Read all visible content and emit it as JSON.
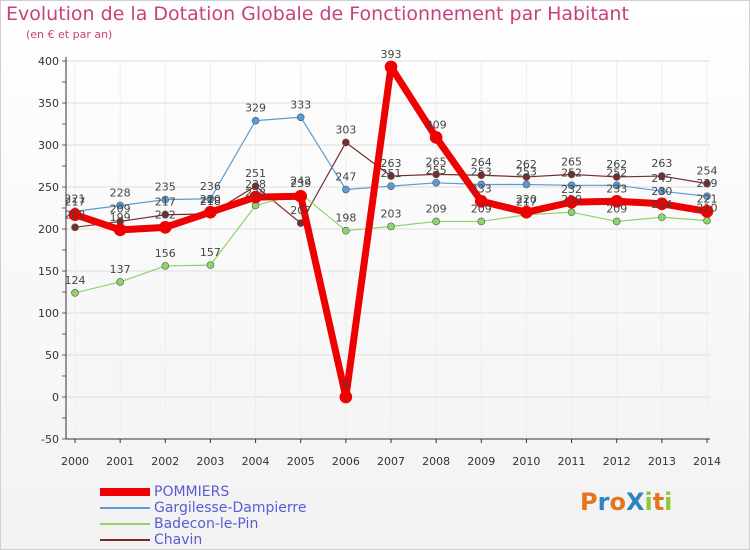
{
  "header": {
    "title": "Evolution de la Dotation Globale de Fonctionnement par Habitant",
    "subtitle": "(en € et par an)"
  },
  "brand": {
    "text": "ProXiti",
    "letters": [
      {
        "ch": "P",
        "color": "#e8731d"
      },
      {
        "ch": "r",
        "color": "#2e86c1"
      },
      {
        "ch": "o",
        "color": "#e8731d"
      },
      {
        "ch": "X",
        "color": "#2e86c1"
      },
      {
        "ch": "i",
        "color": "#8dc63f"
      },
      {
        "ch": "t",
        "color": "#e8731d"
      },
      {
        "ch": "i",
        "color": "#8dc63f"
      }
    ]
  },
  "chart_data": {
    "type": "line",
    "title": "Evolution de la Dotation Globale de Fonctionnement par Habitant",
    "subtitle": "(en € et par an)",
    "xlabel": "",
    "ylabel": "",
    "x": [
      "2000",
      "2001",
      "2002",
      "2003",
      "2004",
      "2005",
      "2006",
      "2007",
      "2008",
      "2009",
      "2010",
      "2011",
      "2012",
      "2013",
      "2014"
    ],
    "ylim": [
      -50,
      400
    ],
    "yticks": [
      -50,
      0,
      50,
      100,
      150,
      200,
      250,
      300,
      350,
      400
    ],
    "grid": true,
    "legend": "bottom-left",
    "series": [
      {
        "name": "Chavin",
        "color": "#7a2c2c",
        "width": 1.2,
        "values": [
          202,
          209,
          217,
          218,
          251,
          207,
          303,
          263,
          265,
          264,
          262,
          265,
          262,
          263,
          254
        ],
        "labels": [
          "202",
          "209",
          "217",
          "218",
          "251",
          "207",
          "303",
          "263",
          "265",
          "264",
          "262",
          "265",
          "262",
          "263",
          "254"
        ]
      },
      {
        "name": "Badecon-le-Pin",
        "color": "#8ed468",
        "width": 1.2,
        "values": [
          124,
          137,
          156,
          157,
          228,
          242,
          198,
          203,
          209,
          209,
          217,
          220,
          209,
          214,
          210
        ],
        "labels": [
          "124",
          "137",
          "156",
          "157",
          "228",
          "242",
          "198",
          "203",
          "209",
          "209",
          "217",
          "220",
          "209",
          "214",
          "210"
        ]
      },
      {
        "name": "Gargilesse-Dampierre",
        "color": "#5b9bd5",
        "width": 1.2,
        "values": [
          221,
          228,
          235,
          236,
          329,
          333,
          247,
          251,
          255,
          253,
          253,
          252,
          252,
          245,
          239
        ],
        "labels": [
          "221",
          "228",
          "235",
          "236",
          "329",
          "333",
          "247",
          "251",
          "255",
          "253",
          "253",
          "252",
          "252",
          "245",
          "239"
        ]
      },
      {
        "name": "POMMIERS",
        "color": "#ee0000",
        "width": 7,
        "values": [
          217,
          199,
          202,
          220,
          238,
          239,
          0,
          393,
          309,
          233,
          220,
          232,
          233,
          230,
          221
        ],
        "labels": [
          "217",
          "199",
          "202",
          "220",
          "238",
          "239",
          "0",
          "393",
          "309",
          "233",
          "220",
          "232",
          "233",
          "230",
          "221"
        ]
      }
    ]
  },
  "legend": {
    "items": [
      {
        "label": "POMMIERS",
        "color": "#ee0000",
        "thick": true
      },
      {
        "label": "Gargilesse-Dampierre",
        "color": "#5b9bd5",
        "thick": false
      },
      {
        "label": "Badecon-le-Pin",
        "color": "#8ed468",
        "thick": false
      },
      {
        "label": "Chavin",
        "color": "#7a2c2c",
        "thick": false
      }
    ]
  }
}
